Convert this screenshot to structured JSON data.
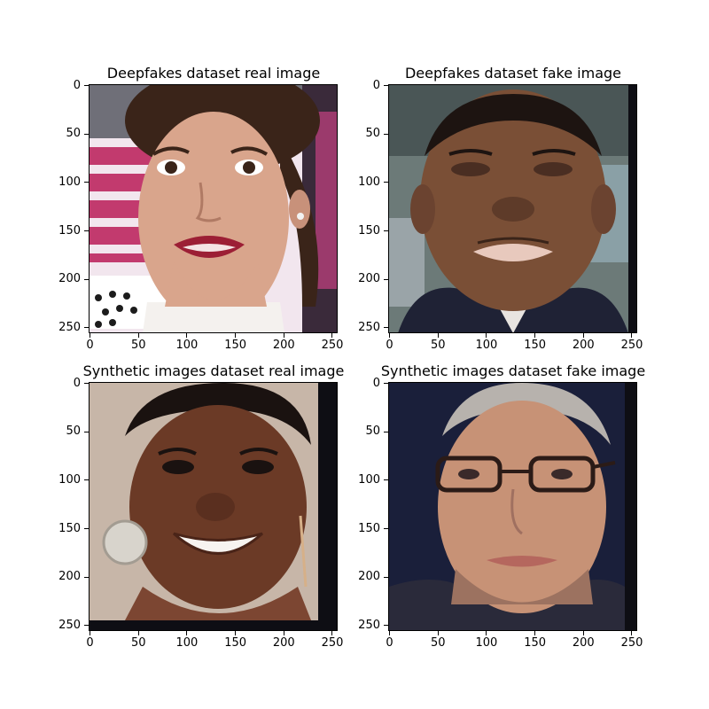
{
  "figure": {
    "panels": [
      {
        "id": "deepfakes-real",
        "title": "Deepfakes dataset real image",
        "image": "photo of a young woman with dark hair pulled back, red lipstick, white collar, pink/white striped background",
        "colors": {
          "skin": "#d9a58c",
          "hair": "#3a2419",
          "bg_left": "#c23a6e",
          "bg_stripe": "#f2e6ee",
          "lips": "#9c1f35",
          "shirt": "#f4f1ee",
          "floor": "#ffffff"
        }
      },
      {
        "id": "deepfakes-fake",
        "title": "Deepfakes dataset fake image",
        "image": "photo of a man with short dark hair in a dark suit, newsroom background",
        "colors": {
          "skin": "#7a4f36",
          "hair": "#1d1411",
          "bg": "#6c7a78",
          "suit": "#1f2235",
          "lips": "#e8c9bd"
        }
      },
      {
        "id": "synthetic-real",
        "title": "Synthetic images dataset real image",
        "image": "photo of a smiling woman with dark hair pulled back, large earrings",
        "colors": {
          "skin": "#6b3a26",
          "hair": "#1a1210",
          "bg": "#c7b6a8",
          "earring": "#d8d4cc",
          "teeth": "#f7f4f0",
          "edge": "#0e0e14"
        }
      },
      {
        "id": "synthetic-fake",
        "title": "Synthetic images dataset fake image",
        "image": "photo of a man with grey hair and glasses against a dark blue background",
        "colors": {
          "skin": "#c79276",
          "hair": "#b7b2ad",
          "bg": "#1a1f3a",
          "shirt": "#2a2a3a",
          "glasses": "#2b1b17",
          "edge": "#0e0e14"
        }
      }
    ],
    "x_ticks": [
      "0",
      "50",
      "100",
      "150",
      "200",
      "250"
    ],
    "y_ticks": [
      "0",
      "50",
      "100",
      "150",
      "200",
      "250"
    ]
  }
}
